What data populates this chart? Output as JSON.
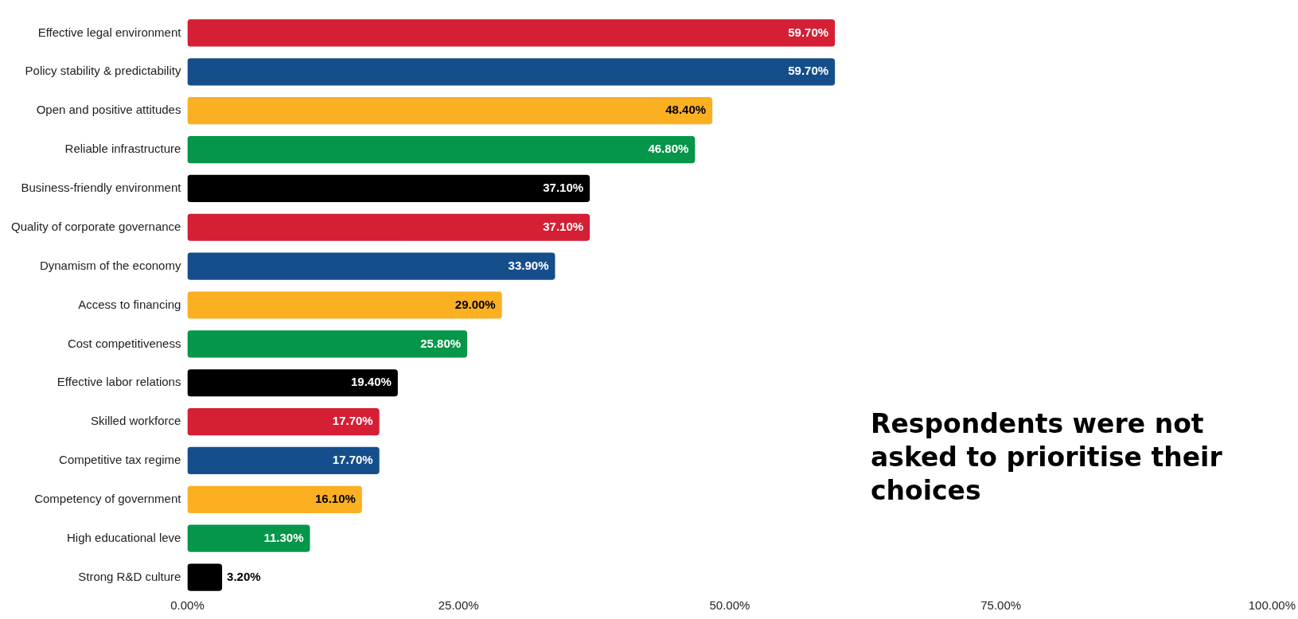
{
  "chart_data": {
    "type": "bar",
    "orientation": "horizontal",
    "categories": [
      "Effective legal environment",
      "Policy stability & predictability",
      "Open and positive attitudes",
      "Reliable infrastructure",
      "Business-friendly environment",
      "Quality of corporate governance",
      "Dynamism of the economy",
      "Access to financing",
      "Cost competitiveness",
      "Effective labor relations",
      "Skilled workforce",
      "Competitive tax regime",
      "Competency of government",
      "High educational leve",
      "Strong R&D culture"
    ],
    "values": [
      59.7,
      59.7,
      48.4,
      46.8,
      37.1,
      37.1,
      33.9,
      29.0,
      25.8,
      19.4,
      17.7,
      17.7,
      16.1,
      11.3,
      3.2
    ],
    "colors": [
      "#d41f35",
      "#154f8b",
      "#fbb022",
      "#05964a",
      "#000000",
      "#d41f35",
      "#154f8b",
      "#fbb022",
      "#05964a",
      "#000000",
      "#d41f35",
      "#154f8b",
      "#fbb022",
      "#05964a",
      "#000000"
    ],
    "value_labels": [
      "59.70%",
      "59.70%",
      "48.40%",
      "46.80%",
      "37.10%",
      "37.10%",
      "33.90%",
      "29.00%",
      "25.80%",
      "19.40%",
      "17.70%",
      "17.70%",
      "16.10%",
      "11.30%",
      "3.20%"
    ],
    "xlim": [
      0,
      100
    ],
    "xticks": [
      {
        "value": 0,
        "label": "0.00%"
      },
      {
        "value": 25,
        "label": "25.00%"
      },
      {
        "value": 50,
        "label": "50.00%"
      },
      {
        "value": 75,
        "label": "75.00%"
      },
      {
        "value": 100,
        "label": "100.00%"
      }
    ],
    "grid": false,
    "legend": false,
    "annotations": [
      "Respondents were not asked to prioritise their choices"
    ]
  }
}
